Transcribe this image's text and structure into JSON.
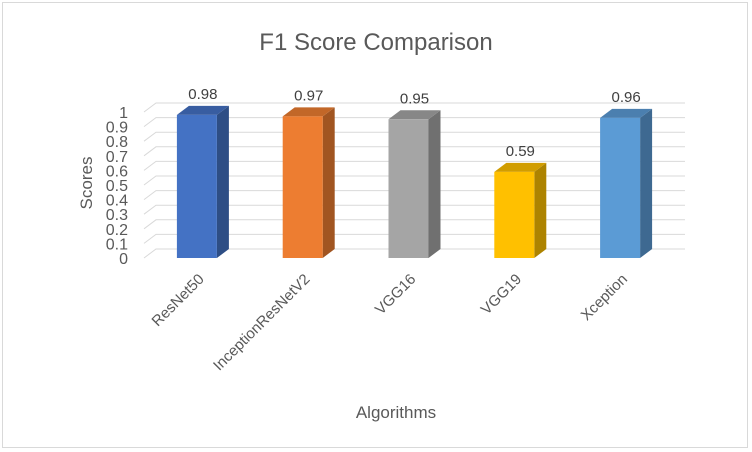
{
  "chart_data": {
    "type": "bar",
    "title": "F1 Score Comparison",
    "xlabel": "Algorithms",
    "ylabel": "Scores",
    "categories": [
      "ResNet50",
      "InceptionResNetV2",
      "VGG16",
      "VGG19",
      "Xception"
    ],
    "values": [
      0.98,
      0.97,
      0.95,
      0.59,
      0.96
    ],
    "data_labels": [
      "0.98",
      "0.97",
      "0.95",
      "0.59",
      "0.96"
    ],
    "y_ticks": [
      "0",
      "0.1",
      "0.2",
      "0.3",
      "0.4",
      "0.5",
      "0.6",
      "0.7",
      "0.8",
      "0.9",
      "1"
    ],
    "ylim": [
      0,
      1
    ],
    "grid": true,
    "legend": "none",
    "style": "3d-column",
    "colors": [
      "#4472C4",
      "#ED7D31",
      "#A5A5A5",
      "#FFC000",
      "#5B9BD5"
    ]
  }
}
